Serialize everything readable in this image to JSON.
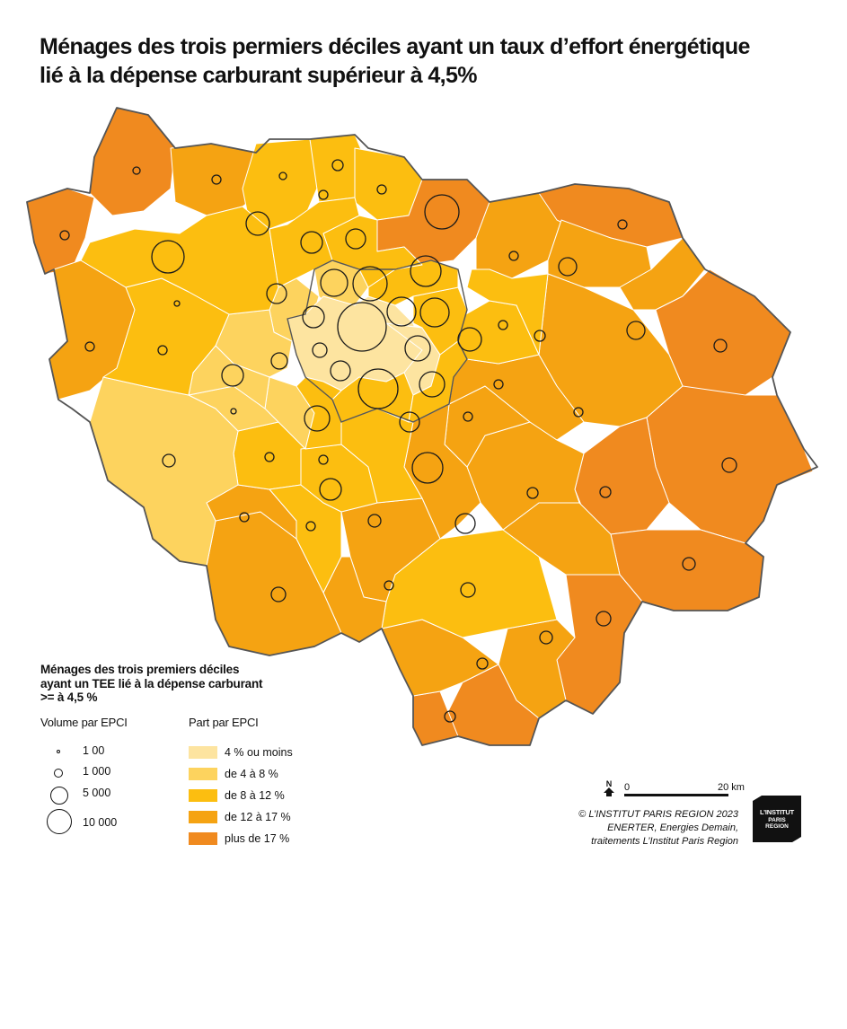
{
  "title": "Ménages des trois permiers déciles ayant un taux d’effort énergétique\nlié à la dépense carburant supérieur à 4,5%",
  "legend": {
    "heading": "Ménages des trois premiers déciles\nayant un TEE lié à la dépense carburant\n>= à 4,5 %",
    "volume_title": "Volume par EPCI",
    "volume_items": [
      {
        "label": "1 00",
        "value": 100
      },
      {
        "label": "1 000",
        "value": 1000
      },
      {
        "label": "5 000",
        "value": 5000
      },
      {
        "label": "10 000",
        "value": 10000
      }
    ],
    "share_title": "Part par EPCI",
    "share_classes": [
      {
        "label": "4 % ou moins",
        "color": "#fde4a0"
      },
      {
        "label": "de 4 à  8 %",
        "color": "#fdd35e"
      },
      {
        "label": "de 8 à 12 %",
        "color": "#fcbe10"
      },
      {
        "label": "de 12 à 17 %",
        "color": "#f5a312"
      },
      {
        "label": "plus de 17 %",
        "color": "#f08a1f"
      }
    ]
  },
  "scale": {
    "start": "0",
    "end": "20 km"
  },
  "north_label": "N",
  "source": "© L’INSTITUT PARIS REGION 2023\nENERTER, Energies Demain,\ntraitements L’Institut Paris Region",
  "logo": {
    "line1": "L’INSTITUT",
    "line2": "PARIS\nREGION"
  }
}
